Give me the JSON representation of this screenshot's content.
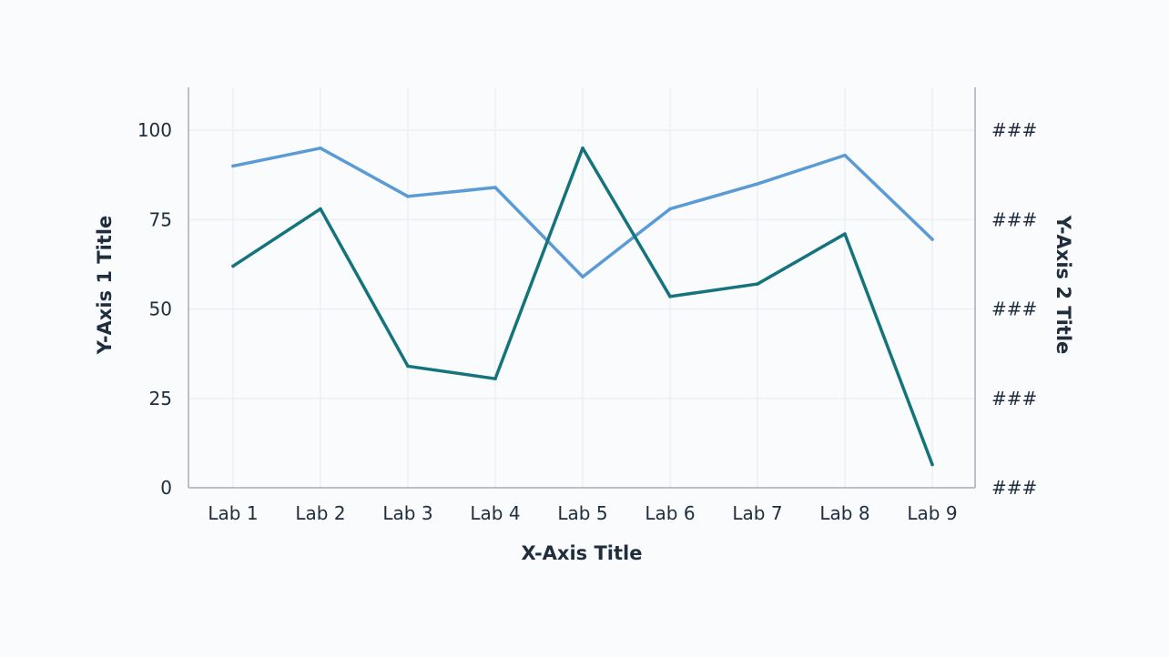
{
  "chart_data": {
    "type": "line",
    "title": "",
    "xlabel": "X-Axis Title",
    "ylabel": "Y-Axis 1 Title",
    "y2label": "Y-Axis 2 Title",
    "categories": [
      "Lab 1",
      "Lab 2",
      "Lab 3",
      "Lab 4",
      "Lab 5",
      "Lab 6",
      "Lab 7",
      "Lab 8",
      "Lab 9"
    ],
    "ylim": [
      0,
      112
    ],
    "yticks": [
      0,
      25,
      50,
      75,
      100
    ],
    "y2ticks": [
      "###",
      "###",
      "###",
      "###",
      "###"
    ],
    "grid": true,
    "legend": "none",
    "series": [
      {
        "color": "#5b9bd5",
        "values": [
          90,
          95,
          81.5,
          84,
          59,
          78,
          85,
          93,
          69.5
        ]
      },
      {
        "color": "#15747b",
        "values": [
          62,
          78,
          34,
          30.5,
          95,
          53.5,
          57,
          71,
          6.5
        ]
      }
    ],
    "colors": {
      "background": "#f9fbfd",
      "grid": "#eceff3",
      "axis": "#a8adb3",
      "text": "#1f2d3d"
    }
  }
}
